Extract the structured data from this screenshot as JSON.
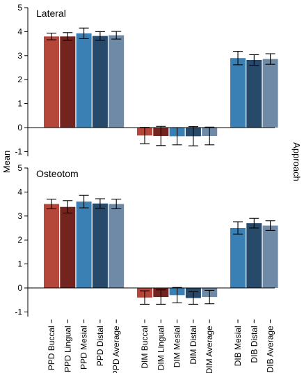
{
  "chart_data": {
    "type": "bar",
    "ylabel": "Mean",
    "right_label": "Approach",
    "ylim": [
      -1.2,
      5
    ],
    "yticks": [
      -1,
      0,
      1,
      2,
      3,
      4,
      5
    ],
    "categories": [
      "PPD Buccal",
      "PPD Lingual",
      "PPD Mesial",
      "PPD Distal",
      "PPD Average",
      "DIM Buccal",
      "DIM Lingual",
      "DIM Mesial",
      "DIM Distal",
      "DIM Average",
      "DIB Mesial",
      "DIB Distal",
      "DIB Average"
    ],
    "colors": {
      "PPD Buccal": "#b5473a",
      "PPD Lingual": "#74241e",
      "PPD Mesial": "#3a80b5",
      "PPD Distal": "#27496a",
      "PPD Average": "#6e8aa6",
      "DIM Buccal": "#b5473a",
      "DIM Lingual": "#74241e",
      "DIM Mesial": "#3a80b5",
      "DIM Distal": "#27496a",
      "DIM Average": "#6e8aa6",
      "DIB Mesial": "#3a80b5",
      "DIB Distal": "#27496a",
      "DIB Average": "#6e8aa6"
    },
    "panels": [
      {
        "title": "Lateral",
        "values": [
          3.8,
          3.8,
          3.93,
          3.82,
          3.85,
          -0.33,
          -0.35,
          -0.36,
          -0.36,
          -0.35,
          2.9,
          2.82,
          2.86
        ],
        "errors": [
          0.14,
          0.16,
          0.22,
          0.18,
          0.16,
          0.34,
          0.4,
          0.36,
          0.4,
          0.37,
          0.28,
          0.22,
          0.22
        ]
      },
      {
        "title": "Osteotom",
        "values": [
          3.5,
          3.38,
          3.6,
          3.52,
          3.5,
          -0.4,
          -0.38,
          -0.3,
          -0.42,
          -0.38,
          2.5,
          2.7,
          2.6
        ],
        "errors": [
          0.2,
          0.26,
          0.26,
          0.2,
          0.2,
          0.28,
          0.3,
          0.32,
          0.26,
          0.28,
          0.26,
          0.2,
          0.2
        ]
      }
    ]
  }
}
